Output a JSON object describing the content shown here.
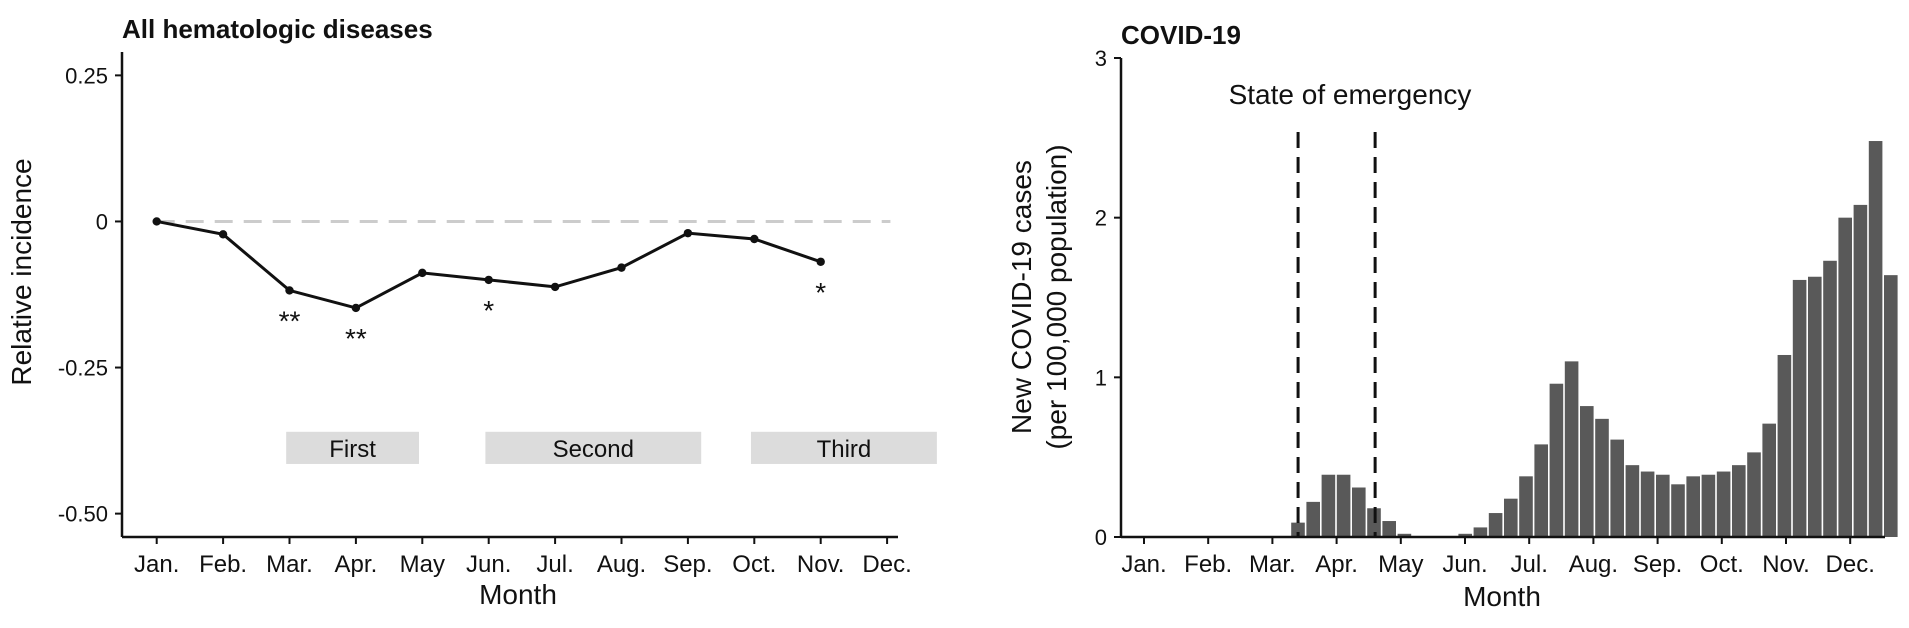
{
  "chart_data": [
    {
      "type": "line",
      "title": "All hematologic diseases",
      "xlabel": "Month",
      "ylabel": "Relative incidence",
      "categories": [
        "Jan.",
        "Feb.",
        "Mar.",
        "Apr.",
        "May",
        "Jun.",
        "Jul.",
        "Aug.",
        "Sep.",
        "Oct.",
        "Nov.",
        "Dec."
      ],
      "yticks": [
        {
          "v": 0.25,
          "label": "0.25"
        },
        {
          "v": 0,
          "label": "0"
        },
        {
          "v": -0.25,
          "label": "-0.25"
        },
        {
          "v": -0.5,
          "label": "-0.50"
        }
      ],
      "ylim": [
        -0.54,
        0.29
      ],
      "reference_line": 0,
      "points": [
        {
          "x": 1,
          "y": 0.0
        },
        {
          "x": 2,
          "y": -0.022
        },
        {
          "x": 3,
          "y": -0.118
        },
        {
          "x": 4,
          "y": -0.148
        },
        {
          "x": 5,
          "y": -0.088
        },
        {
          "x": 6,
          "y": -0.1
        },
        {
          "x": 7,
          "y": -0.112
        },
        {
          "x": 8,
          "y": -0.079
        },
        {
          "x": 9,
          "y": -0.02
        },
        {
          "x": 10,
          "y": -0.03
        },
        {
          "x": 11,
          "y": -0.069
        }
      ],
      "significance": [
        {
          "x": 3,
          "label": "**"
        },
        {
          "x": 4,
          "label": "**"
        },
        {
          "x": 6,
          "label": "*"
        },
        {
          "x": 11,
          "label": "*"
        }
      ],
      "periods": [
        {
          "label": "First",
          "x_start": 2.95,
          "x_end": 4.95
        },
        {
          "label": "Second",
          "x_start": 5.95,
          "x_end": 9.2
        },
        {
          "label": "Third",
          "x_start": 9.95,
          "x_end": 12.75
        }
      ],
      "period_band_y": [
        -0.36,
        -0.415
      ]
    },
    {
      "type": "bar",
      "title": "COVID-19",
      "xlabel": "Month",
      "ylabel_lines": [
        "New COVID-19 cases",
        "(per 100,000 population)"
      ],
      "categories": [
        "Jan.",
        "Feb.",
        "Mar.",
        "Apr.",
        "May",
        "Jun.",
        "Jul.",
        "Aug.",
        "Sep.",
        "Oct.",
        "Nov.",
        "Dec."
      ],
      "yticks": [
        {
          "v": 0,
          "label": "0"
        },
        {
          "v": 1,
          "label": "1"
        },
        {
          "v": 2,
          "label": "2"
        },
        {
          "v": 3,
          "label": "3"
        }
      ],
      "ylim": [
        0,
        3
      ],
      "weekly_values": [
        0,
        0,
        0,
        0,
        0,
        0,
        0,
        0,
        0,
        0,
        0,
        0.09,
        0.22,
        0.39,
        0.39,
        0.31,
        0.18,
        0.1,
        0.02,
        0,
        0,
        0,
        0.02,
        0.06,
        0.15,
        0.24,
        0.38,
        0.58,
        0.96,
        1.1,
        0.82,
        0.74,
        0.61,
        0.45,
        0.41,
        0.39,
        0.33,
        0.38,
        0.39,
        0.41,
        0.45,
        0.53,
        0.71,
        1.14,
        1.61,
        1.63,
        1.73,
        2.0,
        2.08,
        2.48,
        1.64
      ],
      "annotation": "State of emergency",
      "emergency_lines_x": [
        3.4,
        4.6
      ]
    }
  ]
}
